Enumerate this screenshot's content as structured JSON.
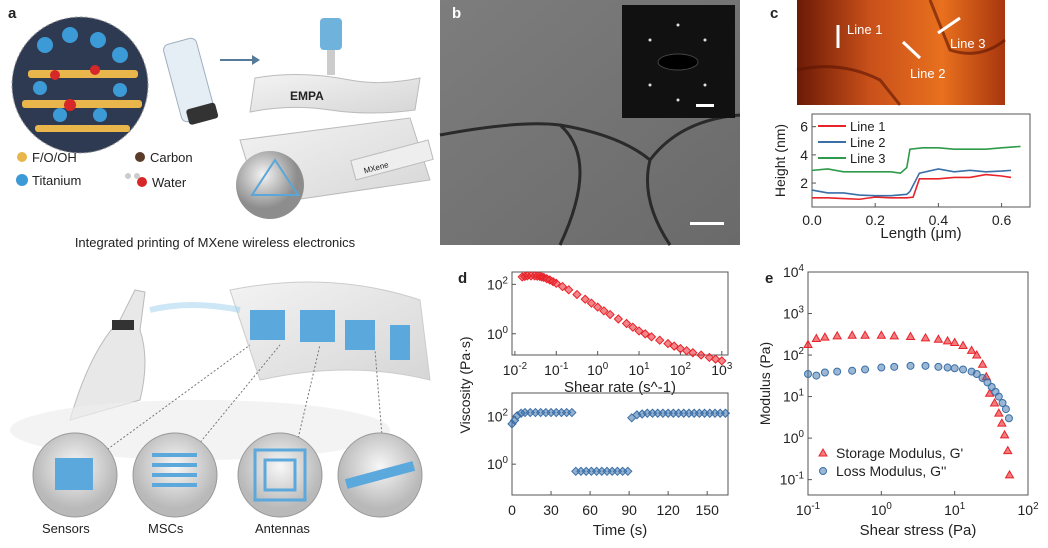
{
  "panels": {
    "a": {
      "label": "a",
      "legend": [
        "F/O/OH",
        "Carbon",
        "Titanium",
        "Water"
      ],
      "caption": "Integrated printing of MXene wireless electronics",
      "devices": [
        "Sensors",
        "MSCs",
        "Antennas"
      ],
      "logo_text": [
        "EMPA",
        "MXene"
      ]
    },
    "b": {
      "label": "b"
    },
    "c": {
      "label": "c",
      "image_labels": [
        "Line 1",
        "Line 2",
        "Line 3"
      ]
    },
    "d": {
      "label": "d",
      "shared_ylabel": "Viscosity (Pa·s)"
    },
    "e": {
      "label": "e"
    }
  },
  "colors": {
    "red": "#e8232a",
    "blue": "#3a6fa8",
    "green": "#2e9a4a",
    "afm": "#d2561a"
  },
  "chart_data": [
    {
      "panel": "c",
      "type": "line",
      "xlabel": "Length (μm)",
      "ylabel": "Height (nm)",
      "xlim": [
        0,
        0.69
      ],
      "ylim": [
        0.3,
        6.9
      ],
      "xticks": [
        "0.0",
        "0.2",
        "0.4",
        "0.6"
      ],
      "yticks": [
        "2",
        "4",
        "6"
      ],
      "legend": "top-left",
      "series": [
        {
          "name": "Line 1",
          "color": "#e8232a",
          "x": [
            0,
            0.05,
            0.1,
            0.15,
            0.2,
            0.25,
            0.3,
            0.32,
            0.34,
            0.4,
            0.45,
            0.5,
            0.55,
            0.6,
            0.63
          ],
          "y": [
            0.95,
            0.95,
            0.9,
            0.85,
            1.0,
            0.95,
            0.95,
            1.0,
            2.3,
            2.3,
            2.4,
            2.4,
            2.6,
            2.5,
            2.4
          ]
        },
        {
          "name": "Line 2",
          "color": "#3a6fa8",
          "x": [
            0,
            0.05,
            0.1,
            0.15,
            0.2,
            0.25,
            0.3,
            0.31,
            0.34,
            0.4,
            0.45,
            0.5,
            0.55,
            0.6,
            0.63
          ],
          "y": [
            1.5,
            1.3,
            1.3,
            1.15,
            1.1,
            1.1,
            1.2,
            1.4,
            2.7,
            3.0,
            2.8,
            2.9,
            2.8,
            2.85,
            2.9
          ]
        },
        {
          "name": "Line 3",
          "color": "#2e9a4a",
          "x": [
            0,
            0.05,
            0.1,
            0.15,
            0.2,
            0.25,
            0.28,
            0.3,
            0.31,
            0.35,
            0.4,
            0.45,
            0.5,
            0.55,
            0.6,
            0.66
          ],
          "y": [
            2.9,
            3.0,
            2.8,
            2.8,
            2.8,
            2.8,
            2.7,
            3.1,
            4.4,
            4.5,
            4.5,
            4.4,
            4.4,
            4.4,
            4.5,
            4.6
          ]
        }
      ]
    },
    {
      "panel": "d-top",
      "type": "scatter",
      "xlabel": "Shear rate (s^-1)",
      "ylabel": "Viscosity (Pa·s)",
      "xscale": "log",
      "yscale": "log",
      "xlim": [
        -2.07,
        3.15
      ],
      "ylim": [
        -0.86,
        2.5
      ],
      "xticks": [
        "10^-2",
        "10^-1",
        "10^0",
        "10^1",
        "10^2",
        "10^3"
      ],
      "yticks": [
        "10^0",
        "10^2"
      ],
      "series": [
        {
          "color": "#e8232a",
          "marker": "diamond",
          "x": [
            0.015,
            0.02,
            0.03,
            0.04,
            0.05,
            0.07,
            0.1,
            0.2,
            0.5,
            1,
            2,
            5,
            10,
            20,
            50,
            100,
            200,
            500,
            1000
          ],
          "y": [
            200,
            220,
            220,
            210,
            190,
            150,
            110,
            60,
            25,
            12,
            6,
            2.6,
            1.3,
            0.75,
            0.4,
            0.25,
            0.17,
            0.11,
            0.08
          ]
        }
      ]
    },
    {
      "panel": "d-bottom",
      "type": "scatter",
      "xlabel": "Time (s)",
      "ylabel": "Viscosity (Pa·s)",
      "yscale": "log",
      "xlim": [
        0,
        166
      ],
      "ylim": [
        -1.3,
        3.0
      ],
      "xticks": [
        "0",
        "30",
        "60",
        "90",
        "120",
        "150"
      ],
      "yticks": [
        "10^0",
        "10^2"
      ],
      "series": [
        {
          "color": "#3a6fa8",
          "marker": "diamond",
          "x": [
            0,
            2,
            4,
            7,
            10,
            14,
            18,
            22,
            26,
            30,
            34,
            38,
            42,
            46,
            49,
            53,
            57,
            61,
            65,
            69,
            73,
            77,
            81,
            85,
            89,
            92,
            96,
            100,
            104,
            108,
            112,
            116,
            120,
            124,
            128,
            132,
            136,
            140,
            144,
            148,
            152,
            156,
            160,
            164
          ],
          "y": [
            50,
            70,
            110,
            140,
            150,
            150,
            150,
            150,
            150,
            150,
            150,
            150,
            150,
            150,
            0.5,
            0.5,
            0.5,
            0.5,
            0.5,
            0.5,
            0.5,
            0.5,
            0.5,
            0.5,
            0.5,
            90,
            120,
            130,
            140,
            140,
            140,
            140,
            140,
            140,
            140,
            140,
            140,
            140,
            140,
            140,
            140,
            140,
            140,
            140
          ]
        }
      ]
    },
    {
      "panel": "e",
      "type": "scatter",
      "xlabel": "Shear stress (Pa)",
      "ylabel": "Modulus (Pa)",
      "xscale": "log",
      "yscale": "log",
      "xlim": [
        -1,
        2
      ],
      "ylim": [
        -1.37,
        4
      ],
      "xticks": [
        "10^-1",
        "10^0",
        "10^1",
        "10^2"
      ],
      "yticks": [
        "10^-1",
        "10^0",
        "10^1",
        "10^2",
        "10^3",
        "10^4"
      ],
      "legend": "bottom-left",
      "series": [
        {
          "name": "Storage Modulus, G'",
          "color": "#e8232a",
          "marker": "triangle",
          "x": [
            0.1,
            0.13,
            0.17,
            0.25,
            0.4,
            0.6,
            1,
            1.5,
            2.5,
            4,
            6,
            8,
            10,
            13,
            17,
            20,
            24,
            27,
            30,
            35,
            40,
            44,
            48,
            53,
            56
          ],
          "y": [
            180,
            250,
            270,
            290,
            300,
            300,
            300,
            290,
            280,
            260,
            240,
            220,
            200,
            170,
            130,
            100,
            60,
            30,
            12,
            7,
            4,
            2.3,
            1.2,
            0.5,
            0.13
          ]
        },
        {
          "name": "Loss Modulus, G''",
          "color": "#3a6fa8",
          "marker": "circle",
          "x": [
            0.1,
            0.13,
            0.17,
            0.25,
            0.4,
            0.6,
            1,
            1.5,
            2.5,
            4,
            6,
            8,
            10,
            13,
            17,
            20,
            24,
            28,
            32,
            36,
            40,
            45,
            50,
            55
          ],
          "y": [
            35,
            32,
            38,
            40,
            42,
            45,
            50,
            52,
            55,
            55,
            52,
            50,
            48,
            45,
            40,
            35,
            28,
            22,
            17,
            13,
            10,
            7,
            5,
            3
          ]
        }
      ]
    }
  ]
}
